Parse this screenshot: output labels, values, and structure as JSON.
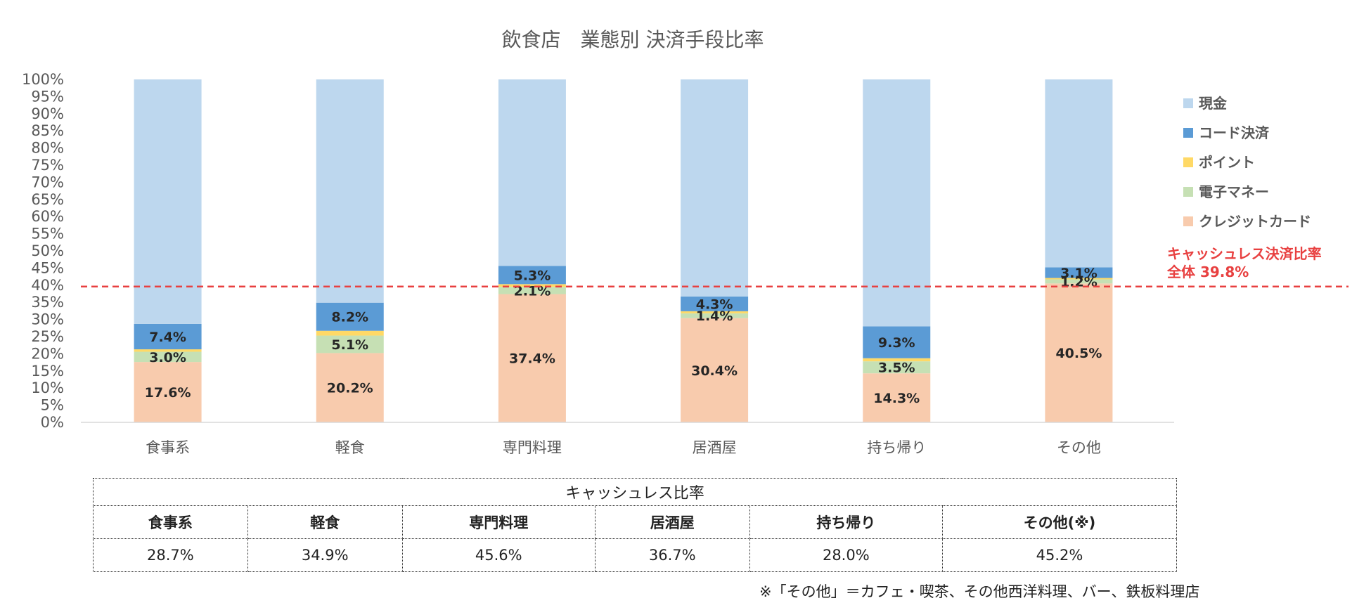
{
  "chart_data": {
    "type": "bar",
    "stacked": true,
    "title": "飲食店　業態別 決済手段比率",
    "categories": [
      "食事系",
      "軽食",
      "専門料理",
      "居酒屋",
      "持ち帰り",
      "その他"
    ],
    "ylim": [
      0,
      100
    ],
    "yticks": [
      "0%",
      "5%",
      "10%",
      "15%",
      "20%",
      "25%",
      "30%",
      "35%",
      "40%",
      "45%",
      "50%",
      "55%",
      "60%",
      "65%",
      "70%",
      "75%",
      "80%",
      "85%",
      "90%",
      "95%",
      "100%"
    ],
    "series": [
      {
        "name": "クレジットカード",
        "color": "#F8CBAD",
        "values": [
          17.6,
          20.2,
          37.4,
          30.4,
          14.3,
          40.5
        ],
        "labels": [
          "17.6%",
          "20.2%",
          "37.4%",
          "30.4%",
          "14.3%",
          "40.5%"
        ]
      },
      {
        "name": "電子マネー",
        "color": "#C6E0B4",
        "values": [
          3.0,
          5.1,
          2.1,
          1.4,
          3.5,
          1.2
        ],
        "labels": [
          "3.0%",
          "5.1%",
          "2.1%",
          "1.4%",
          "3.5%",
          "1.2%"
        ]
      },
      {
        "name": "ポイント",
        "color": "#FFD966",
        "values": [
          0.7,
          1.4,
          0.8,
          0.6,
          0.9,
          0.4
        ],
        "labels": [
          "",
          "",
          "",
          "",
          "",
          ""
        ]
      },
      {
        "name": "コード決済",
        "color": "#5B9BD5",
        "values": [
          7.4,
          8.2,
          5.3,
          4.3,
          9.3,
          3.1
        ],
        "labels": [
          "7.4%",
          "8.2%",
          "5.3%",
          "4.3%",
          "9.3%",
          "3.1%"
        ]
      },
      {
        "name": "現金",
        "color": "#BDD7EE",
        "values": [
          71.3,
          65.1,
          54.4,
          63.3,
          72.0,
          54.8
        ],
        "labels": [
          "",
          "",
          "",
          "",
          "",
          ""
        ]
      }
    ],
    "legend_order": [
      "現金",
      "コード決済",
      "ポイント",
      "電子マネー",
      "クレジットカード"
    ],
    "legend_position": "right",
    "reference_line": {
      "value": 39.8,
      "label_line1": "キャッシュレス決済比率",
      "label_line2": "全体 39.8%",
      "color": "#E84040"
    }
  },
  "table": {
    "title": "キャッシュレス比率",
    "headers": [
      "食事系",
      "軽食",
      "専門料理",
      "居酒屋",
      "持ち帰り",
      "その他(※)"
    ],
    "values": [
      "28.7%",
      "34.9%",
      "45.6%",
      "36.7%",
      "28.0%",
      "45.2%"
    ]
  },
  "footnote": "※「その他」＝カフェ・喫茶、その他西洋料理、バー、鉄板料理店"
}
